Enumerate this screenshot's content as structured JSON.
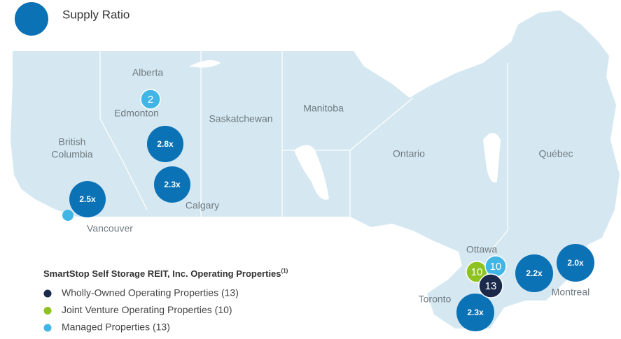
{
  "top_legend": {
    "label": "Supply Ratio",
    "color": "#0b72b5"
  },
  "regions": [
    {
      "lines": [
        "Alberta"
      ]
    },
    {
      "lines": [
        "British",
        "Columbia"
      ]
    },
    {
      "lines": [
        "Saskatchewan"
      ]
    },
    {
      "lines": [
        "Manitoba"
      ]
    },
    {
      "lines": [
        "Ontario"
      ]
    },
    {
      "lines": [
        "Québec"
      ]
    }
  ],
  "cities": [
    "Edmonton",
    "Calgary",
    "Vancouver",
    "Ottawa",
    "Toronto",
    "Montreal"
  ],
  "ratio_bubbles": [
    {
      "label": "2.8x",
      "color": "#0b72b5"
    },
    {
      "label": "2.3x",
      "color": "#0b72b5"
    },
    {
      "label": "2.5x",
      "color": "#0b72b5"
    },
    {
      "label": "2.3x",
      "color": "#0b72b5"
    },
    {
      "label": "2.2x",
      "color": "#0b72b5"
    },
    {
      "label": "2.0x",
      "color": "#0b72b5"
    }
  ],
  "count_bubbles": [
    {
      "label": "2",
      "color": "#41b6e6"
    },
    {
      "label": "10",
      "color": "#8dc220"
    },
    {
      "label": "10",
      "color": "#41b6e6"
    },
    {
      "label": "13",
      "color": "#1b2a4a"
    }
  ],
  "legend": {
    "title": "SmartStop Self Storage REIT, Inc. Operating Properties",
    "footnote": "(1)",
    "items": [
      {
        "label": "Wholly-Owned Operating Properties (13)",
        "color": "#1b2a4a"
      },
      {
        "label": "Joint Venture Operating Properties (10)",
        "color": "#8dc220"
      },
      {
        "label": "Managed Properties (13)",
        "color": "#41b6e6"
      }
    ]
  }
}
